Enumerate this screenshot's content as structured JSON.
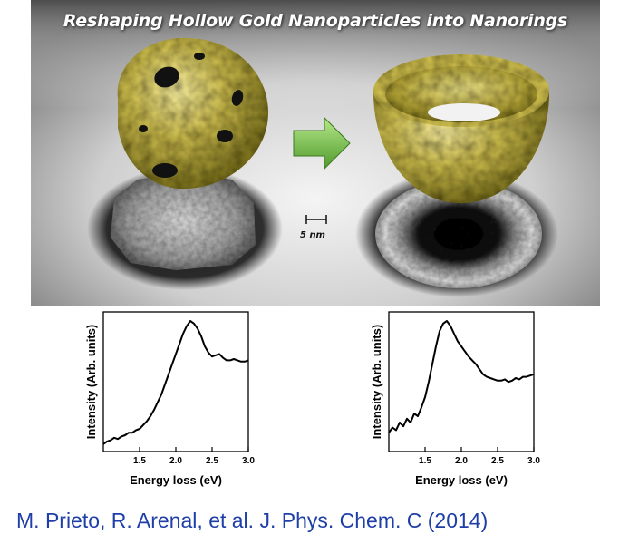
{
  "banner": {
    "title": "Reshaping Hollow Gold Nanoparticles into Nanorings",
    "scale_bar_label": "5 nm",
    "arrow_color": "#7cc24a",
    "gold_color": "#c9b84a"
  },
  "chart_data": [
    {
      "type": "line",
      "title": "",
      "xlabel": "Energy loss (eV)",
      "ylabel": "Intensity (Arb. units)",
      "xlim": [
        1.0,
        3.0
      ],
      "xticks": [
        "1.5",
        "2.0",
        "2.5",
        "3.0"
      ],
      "series": [
        {
          "x": [
            1.0,
            1.05,
            1.1,
            1.15,
            1.2,
            1.25,
            1.3,
            1.35,
            1.4,
            1.45,
            1.5,
            1.55,
            1.6,
            1.65,
            1.7,
            1.75,
            1.8,
            1.85,
            1.9,
            1.95,
            2.0,
            2.05,
            2.1,
            2.15,
            2.2,
            2.25,
            2.3,
            2.35,
            2.4,
            2.45,
            2.5,
            2.55,
            2.6,
            2.65,
            2.7,
            2.75,
            2.8,
            2.85,
            2.9,
            2.95,
            3.0
          ],
          "y": [
            0.03,
            0.05,
            0.06,
            0.08,
            0.07,
            0.09,
            0.1,
            0.12,
            0.12,
            0.14,
            0.15,
            0.18,
            0.21,
            0.25,
            0.3,
            0.36,
            0.42,
            0.5,
            0.58,
            0.66,
            0.74,
            0.82,
            0.9,
            0.96,
            1.0,
            0.98,
            0.94,
            0.88,
            0.8,
            0.75,
            0.72,
            0.73,
            0.74,
            0.71,
            0.69,
            0.69,
            0.7,
            0.69,
            0.68,
            0.68,
            0.69
          ]
        }
      ]
    },
    {
      "type": "line",
      "title": "",
      "xlabel": "Energy loss (eV)",
      "ylabel": "Intensity (Arb. units)",
      "xlim": [
        1.0,
        3.0
      ],
      "xticks": [
        "1.5",
        "2.0",
        "2.5",
        "3.0"
      ],
      "series": [
        {
          "x": [
            1.0,
            1.05,
            1.1,
            1.15,
            1.2,
            1.25,
            1.3,
            1.35,
            1.4,
            1.45,
            1.5,
            1.55,
            1.6,
            1.65,
            1.7,
            1.75,
            1.8,
            1.85,
            1.9,
            1.95,
            2.0,
            2.05,
            2.1,
            2.15,
            2.2,
            2.25,
            2.3,
            2.35,
            2.4,
            2.45,
            2.5,
            2.55,
            2.6,
            2.65,
            2.7,
            2.75,
            2.8,
            2.85,
            2.9,
            2.95,
            3.0
          ],
          "y": [
            0.12,
            0.16,
            0.14,
            0.2,
            0.17,
            0.23,
            0.2,
            0.27,
            0.25,
            0.32,
            0.4,
            0.52,
            0.66,
            0.8,
            0.92,
            0.98,
            1.0,
            0.96,
            0.9,
            0.84,
            0.8,
            0.76,
            0.72,
            0.69,
            0.66,
            0.62,
            0.58,
            0.56,
            0.55,
            0.54,
            0.53,
            0.53,
            0.54,
            0.52,
            0.53,
            0.55,
            0.54,
            0.56,
            0.56,
            0.57,
            0.58
          ]
        }
      ]
    }
  ],
  "citation": "M. Prieto, R. Arenal, et al. J. Phys. Chem. C (2014)"
}
